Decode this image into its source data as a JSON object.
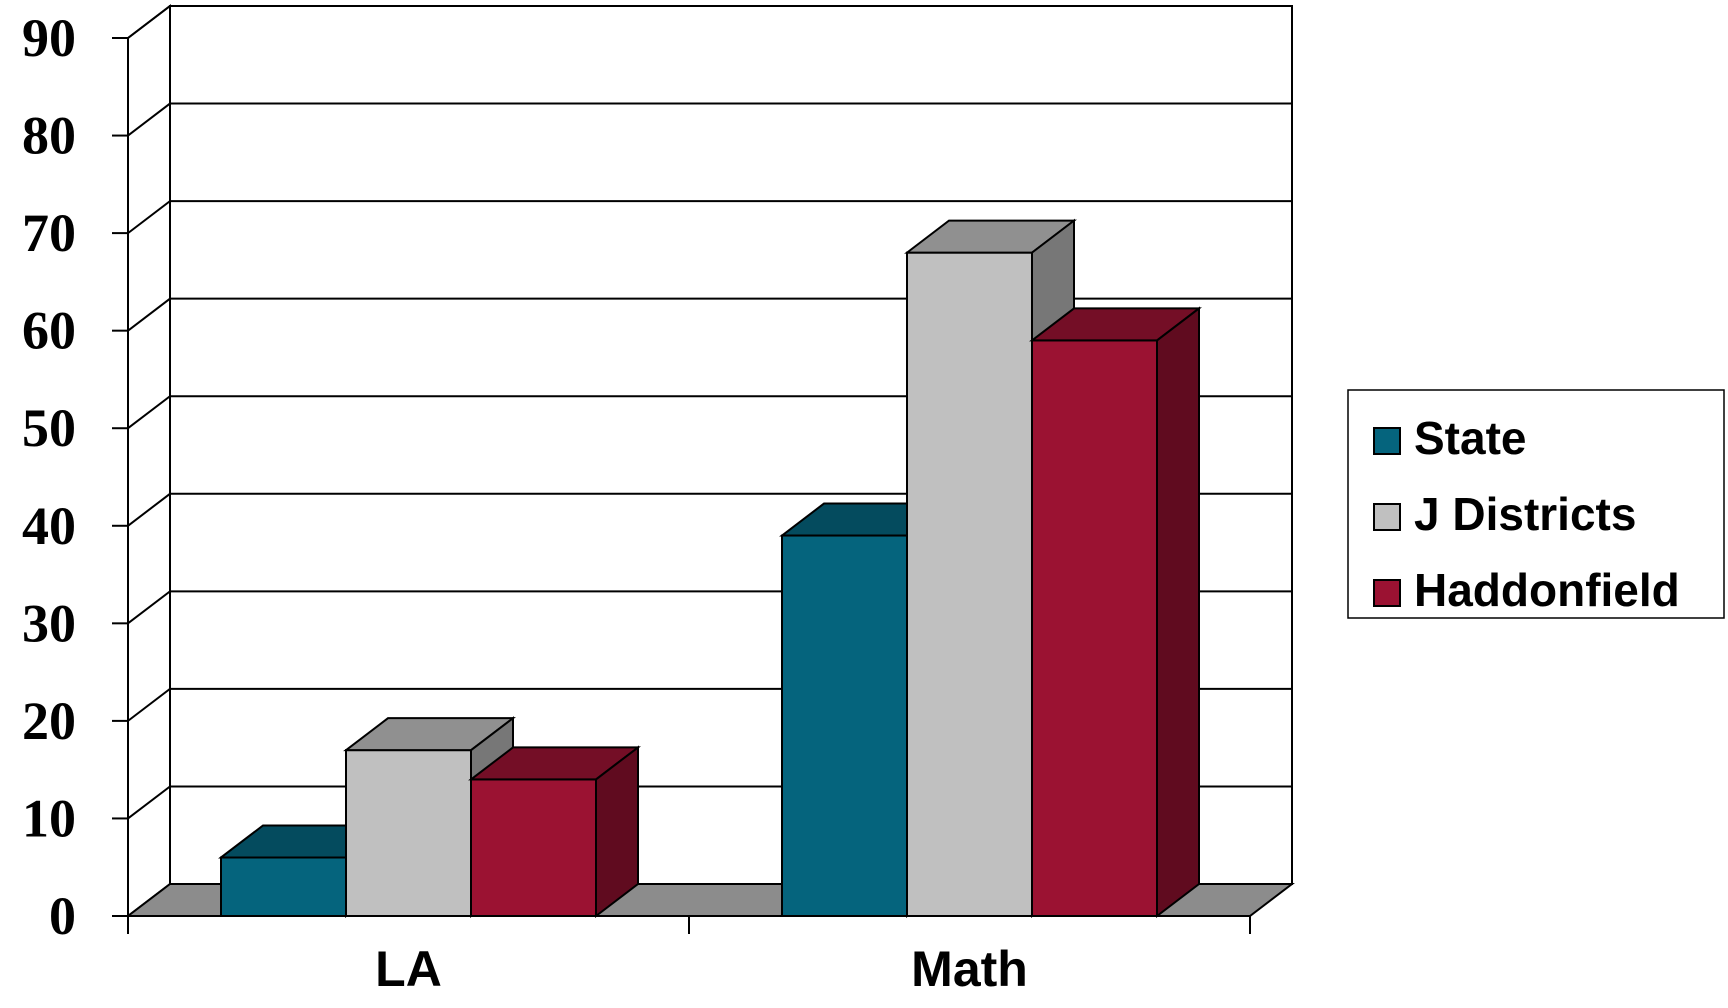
{
  "chart_data": {
    "type": "bar",
    "style": "3d-clustered-column",
    "categories": [
      "LA",
      "Math"
    ],
    "series": [
      {
        "name": "State",
        "values": [
          6,
          39
        ],
        "color": "#05647d"
      },
      {
        "name": "J Districts",
        "values": [
          17,
          68
        ],
        "color": "#c0c0c0"
      },
      {
        "name": "Haddonfield",
        "values": [
          14,
          59
        ],
        "color": "#9b1232"
      }
    ],
    "yticks": [
      "0",
      "10",
      "20",
      "30",
      "40",
      "50",
      "60",
      "70",
      "80",
      "90"
    ],
    "ylim": [
      0,
      90
    ],
    "grid": true,
    "legend_position": "right",
    "title": "",
    "xlabel": "",
    "ylabel": ""
  }
}
